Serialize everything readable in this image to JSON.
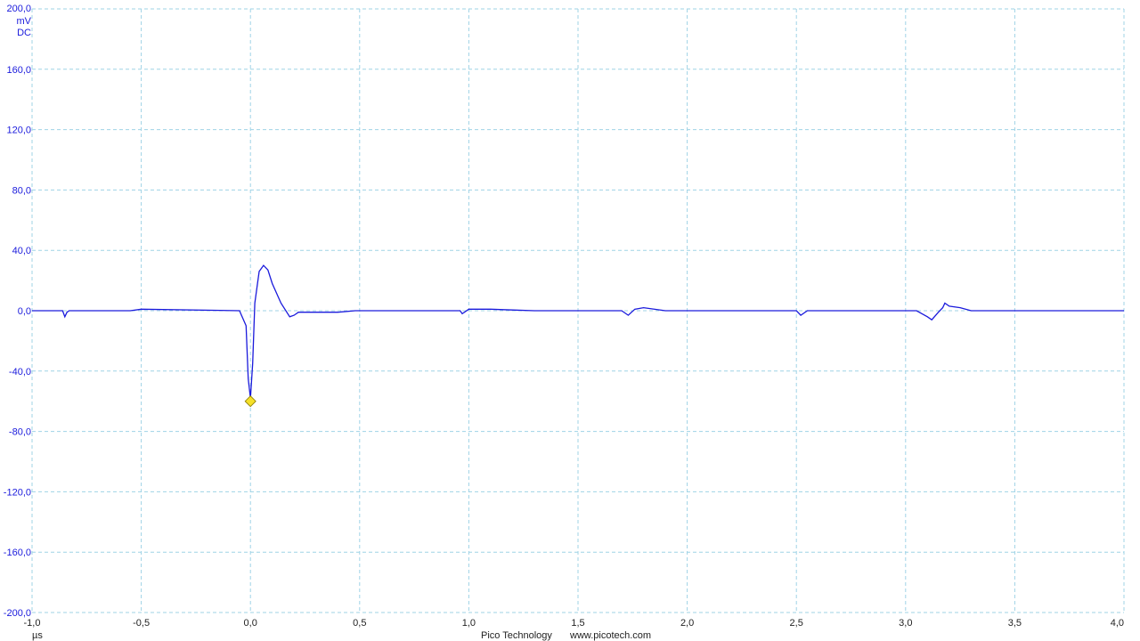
{
  "chart_data": {
    "type": "line",
    "title": "",
    "ylabel_unit": "mV",
    "ylabel_coupling": "DC",
    "xlabel_unit": "µs",
    "xlim": [
      -1.0,
      4.0
    ],
    "ylim": [
      -200.0,
      200.0
    ],
    "grid": true,
    "x_ticks": [
      "-1,0",
      "-0,5",
      "0,0",
      "0,5",
      "1,0",
      "1,5",
      "2,0",
      "2,5",
      "3,0",
      "3,5",
      "4,0"
    ],
    "x_tick_values": [
      -1.0,
      -0.5,
      0.0,
      0.5,
      1.0,
      1.5,
      2.0,
      2.5,
      3.0,
      3.5,
      4.0
    ],
    "y_ticks": [
      "200,0",
      "160,0",
      "120,0",
      "80,0",
      "40,0",
      "0,0",
      "-40,0",
      "-80,0",
      "-120,0",
      "-160,0",
      "-200,0"
    ],
    "y_tick_values": [
      200,
      160,
      120,
      80,
      40,
      0,
      -40,
      -80,
      -120,
      -160,
      -200
    ],
    "series": [
      {
        "color": "#1a1adc",
        "x": [
          -1.0,
          -0.86,
          -0.85,
          -0.84,
          -0.83,
          -0.55,
          -0.5,
          -0.05,
          -0.02,
          -0.01,
          0.0,
          0.01,
          0.02,
          0.04,
          0.06,
          0.08,
          0.1,
          0.14,
          0.18,
          0.2,
          0.22,
          0.3,
          0.4,
          0.48,
          0.5,
          0.96,
          0.97,
          1.0,
          1.1,
          1.2,
          1.3,
          1.55,
          1.7,
          1.73,
          1.76,
          1.8,
          1.9,
          2.1,
          2.5,
          2.52,
          2.55,
          2.6,
          3.05,
          3.1,
          3.12,
          3.15,
          3.17,
          3.18,
          3.2,
          3.25,
          3.3,
          4.0
        ],
        "y": [
          0.0,
          0.0,
          -4.0,
          -1.0,
          0.0,
          0.0,
          1.0,
          0.0,
          -10.0,
          -45.0,
          -58.0,
          -35.0,
          5.0,
          26.0,
          30.0,
          27.0,
          18.0,
          5.0,
          -4.0,
          -3.0,
          -1.0,
          -1.0,
          -1.0,
          0.0,
          0.0,
          0.0,
          -2.0,
          1.0,
          1.0,
          0.5,
          0.0,
          0.0,
          0.0,
          -3.0,
          1.0,
          2.0,
          0.0,
          0.0,
          0.0,
          -3.0,
          0.0,
          0.0,
          0.0,
          -4.0,
          -6.0,
          -1.0,
          2.0,
          5.0,
          3.0,
          2.0,
          0.0,
          0.0
        ]
      }
    ],
    "marker": {
      "x": 0.0,
      "y": -60.0,
      "color": "#f5e028"
    }
  },
  "footer": {
    "brand": "Pico Technology",
    "url": "www.picotech.com"
  }
}
